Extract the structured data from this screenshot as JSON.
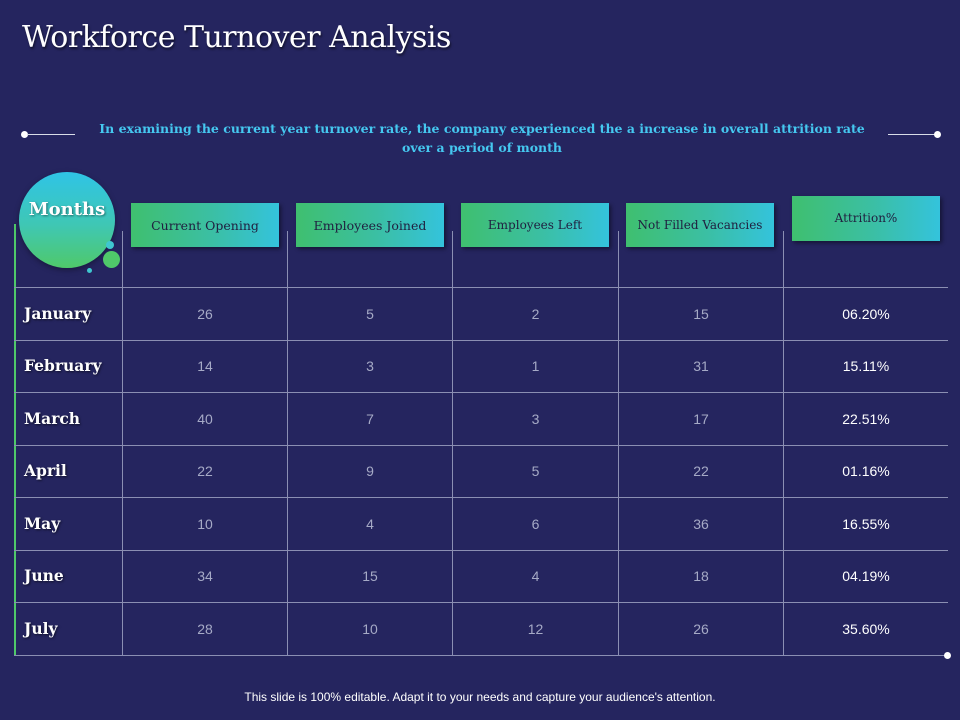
{
  "title": "Workforce Turnover Analysis",
  "intro": "In examining the current year turnover rate, the company experienced the a increase in overall attrition rate over a period of month",
  "months_label": "Months",
  "columns": [
    "Current Opening",
    "Employees Joined",
    "Employees Left",
    "Not Filled Vacancies",
    "Attrition%"
  ],
  "rows": [
    {
      "month": "January",
      "values": [
        "26",
        "5",
        "2",
        "15"
      ],
      "attrition": "06.20%"
    },
    {
      "month": "February",
      "values": [
        "14",
        "3",
        "1",
        "31"
      ],
      "attrition": "15.11%"
    },
    {
      "month": "March",
      "values": [
        "40",
        "7",
        "3",
        "17"
      ],
      "attrition": "22.51%"
    },
    {
      "month": "April",
      "values": [
        "22",
        "9",
        "5",
        "22"
      ],
      "attrition": "01.16%"
    },
    {
      "month": "May",
      "values": [
        "10",
        "4",
        "6",
        "36"
      ],
      "attrition": "16.55%"
    },
    {
      "month": "June",
      "values": [
        "34",
        "15",
        "4",
        "18"
      ],
      "attrition": "04.19%"
    },
    {
      "month": "July",
      "values": [
        "28",
        "10",
        "12",
        "26"
      ],
      "attrition": "35.60%"
    }
  ],
  "footer": "This slide is 100% editable. Adapt it to your needs and capture your audience's attention.",
  "colors": {
    "background": "#25255f",
    "accent_text": "#45c8f0",
    "header_gradient_start": "#3fbf6f",
    "header_gradient_end": "#34c3dc"
  }
}
